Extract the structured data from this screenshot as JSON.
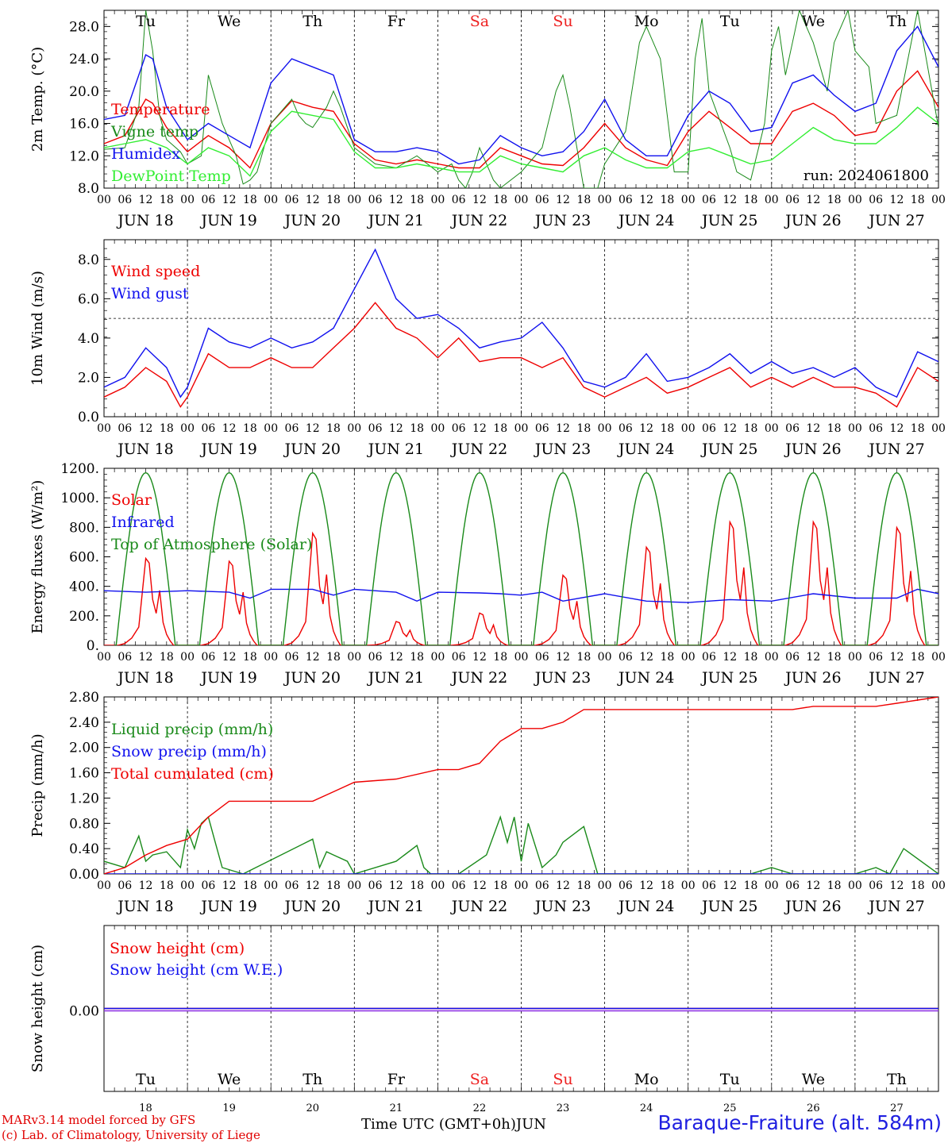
{
  "colors": {
    "red": "#ee0000",
    "darkgreen": "#1a8a1a",
    "blue": "#1010ee",
    "lightgreen": "#33ee33",
    "purple": "#8a2be2",
    "black": "#000000",
    "sat_sun": "#ee2222"
  },
  "days": {
    "weekday_top": [
      "Tu",
      "We",
      "Th",
      "Fr",
      "Sa",
      "Su",
      "Mo",
      "Tu",
      "We",
      "Th"
    ],
    "weekend_index": [
      4,
      5
    ],
    "date_labels": [
      "JUN 18",
      "JUN 19",
      "JUN 20",
      "JUN 21",
      "JUN 22",
      "JUN 23",
      "JUN 24",
      "JUN 25",
      "JUN 26",
      "JUN 27"
    ],
    "day_numbers": [
      "18",
      "19",
      "20",
      "21",
      "22",
      "23",
      "24",
      "25",
      "26",
      "27"
    ],
    "hour_ticks": [
      "00",
      "06",
      "12",
      "18"
    ],
    "final_tick": "00"
  },
  "footer": {
    "credit_line1": "MARv3.14 model forced by GFS",
    "credit_line2": "(c) Lab. of Climatology, University of Liege",
    "time_label": "Time UTC (GMT+0h)",
    "month_label": "JUN",
    "station": "Baraque-Fraiture (alt. 584m)"
  },
  "chart_data": [
    {
      "type": "line",
      "ylabel": "2m Temp. (°C)",
      "ylim": [
        8,
        30
      ],
      "yticks": [
        "8.0",
        "12.0",
        "16.0",
        "20.0",
        "24.0",
        "28.0"
      ],
      "annotation": "run: 2024061800",
      "x_unit": "hours since 2024-06-18 00 UTC",
      "series": [
        {
          "name": "Temperature",
          "color": "red",
          "x": [
            0,
            6,
            12,
            14,
            18,
            24,
            30,
            36,
            42,
            48,
            54,
            60,
            66,
            72,
            78,
            84,
            90,
            96,
            102,
            108,
            114,
            120,
            126,
            132,
            138,
            144,
            150,
            156,
            162,
            168,
            174,
            180,
            186,
            192,
            198,
            204,
            210,
            216,
            222,
            228,
            234,
            240
          ],
          "values": [
            13.5,
            14.5,
            19,
            18.5,
            15.5,
            12.5,
            14.5,
            13,
            10.5,
            16,
            18.8,
            18,
            17.5,
            13.5,
            11.5,
            11,
            11.5,
            11,
            10.5,
            10.5,
            13,
            12,
            11,
            10.8,
            13,
            16,
            13,
            11.5,
            10.8,
            15,
            17.5,
            15.5,
            13.5,
            13.5,
            17.5,
            18.5,
            17,
            14.5,
            15,
            20,
            22.5,
            18
          ]
        },
        {
          "name": "Vigne temp",
          "color": "darkgreen",
          "x": [
            0,
            6,
            10,
            12,
            14,
            16,
            18,
            22,
            24,
            28,
            30,
            34,
            36,
            38,
            40,
            42,
            44,
            48,
            54,
            56,
            58,
            60,
            64,
            66,
            68,
            72,
            78,
            84,
            90,
            96,
            100,
            102,
            104,
            106,
            108,
            112,
            114,
            120,
            126,
            130,
            132,
            134,
            136,
            138,
            142,
            144,
            150,
            154,
            156,
            160,
            162,
            164,
            168,
            170,
            172,
            174,
            180,
            182,
            186,
            190,
            192,
            194,
            196,
            198,
            200,
            204,
            208,
            210,
            214,
            216,
            220,
            222,
            228,
            234,
            240
          ],
          "values": [
            12.8,
            13,
            18,
            30,
            25,
            17,
            14,
            12.5,
            11,
            12,
            22,
            16,
            14,
            12,
            8.5,
            9,
            10,
            16,
            19,
            17,
            16,
            15.5,
            18,
            20,
            18,
            13,
            11,
            10.5,
            12,
            10,
            11,
            9,
            8,
            10,
            13,
            9,
            8,
            10,
            13,
            20,
            22,
            18,
            13,
            8,
            8,
            11,
            15,
            26,
            28,
            24,
            17,
            10,
            10,
            24,
            29,
            20,
            13,
            10,
            9,
            16,
            25,
            28,
            22,
            26,
            30,
            26,
            20,
            26,
            30,
            25,
            23,
            16,
            17,
            30,
            15.5
          ]
        },
        {
          "name": "Humidex",
          "color": "blue",
          "x": [
            0,
            6,
            12,
            14,
            18,
            24,
            30,
            36,
            42,
            48,
            54,
            60,
            66,
            72,
            78,
            84,
            90,
            96,
            102,
            108,
            114,
            120,
            126,
            132,
            138,
            144,
            150,
            156,
            162,
            168,
            174,
            180,
            186,
            192,
            198,
            204,
            210,
            216,
            222,
            228,
            234,
            240
          ],
          "values": [
            16.5,
            17,
            24.5,
            24,
            18,
            14,
            16,
            14.5,
            13,
            21,
            24,
            23,
            22,
            14,
            12.5,
            12.5,
            13,
            12.5,
            11,
            11.5,
            14.5,
            13,
            12,
            12.5,
            15,
            19,
            14,
            12,
            12,
            17,
            20,
            18.5,
            15,
            15.5,
            21,
            22,
            19.5,
            17.5,
            18.5,
            25,
            28,
            23
          ]
        },
        {
          "name": "DewPoint Temp",
          "color": "lightgreen",
          "x": [
            0,
            6,
            12,
            18,
            24,
            30,
            36,
            42,
            48,
            54,
            60,
            66,
            72,
            78,
            84,
            90,
            96,
            102,
            108,
            114,
            120,
            126,
            132,
            138,
            144,
            150,
            156,
            162,
            168,
            174,
            180,
            186,
            192,
            198,
            204,
            210,
            216,
            222,
            228,
            234,
            240
          ],
          "values": [
            13,
            13.5,
            14,
            13,
            11,
            13,
            12,
            9.5,
            15,
            17.5,
            17,
            16.5,
            12.5,
            10.5,
            10.5,
            11,
            10.5,
            10,
            10,
            12,
            11,
            10.5,
            10,
            12,
            13,
            11.5,
            10.5,
            10.5,
            12.5,
            13,
            12,
            11,
            11.5,
            13.5,
            15.5,
            14,
            13.5,
            13.5,
            15.5,
            18,
            16
          ]
        }
      ]
    },
    {
      "type": "line",
      "ylabel": "10m Wind (m/s)",
      "ylim": [
        0,
        9
      ],
      "yticks": [
        "0.0",
        "2.0",
        "4.0",
        "6.0",
        "8.0"
      ],
      "reference_line": 5,
      "x_unit": "hours since 2024-06-18 00 UTC",
      "series": [
        {
          "name": "Wind speed",
          "color": "red",
          "x": [
            0,
            6,
            12,
            18,
            22,
            24,
            30,
            36,
            42,
            48,
            54,
            60,
            66,
            72,
            78,
            84,
            90,
            96,
            102,
            108,
            114,
            120,
            126,
            132,
            138,
            144,
            150,
            156,
            162,
            168,
            174,
            180,
            186,
            192,
            198,
            204,
            210,
            216,
            222,
            228,
            234,
            240
          ],
          "values": [
            1.0,
            1.5,
            2.5,
            1.8,
            0.5,
            1.0,
            3.2,
            2.5,
            2.5,
            3.0,
            2.5,
            2.5,
            3.5,
            4.5,
            5.8,
            4.5,
            4.0,
            3.0,
            4.0,
            2.8,
            3.0,
            3.0,
            2.5,
            3.0,
            1.5,
            1.0,
            1.5,
            2.0,
            1.2,
            1.5,
            2.0,
            2.5,
            1.5,
            2.0,
            1.5,
            2.0,
            1.5,
            1.5,
            1.2,
            0.5,
            2.5,
            1.8
          ]
        },
        {
          "name": "Wind gust",
          "color": "blue",
          "x": [
            0,
            6,
            12,
            18,
            22,
            24,
            30,
            36,
            42,
            48,
            54,
            60,
            66,
            72,
            78,
            84,
            90,
            96,
            102,
            108,
            114,
            120,
            126,
            132,
            138,
            144,
            150,
            156,
            162,
            168,
            174,
            180,
            186,
            192,
            198,
            204,
            210,
            216,
            222,
            228,
            234,
            240
          ],
          "values": [
            1.5,
            2.0,
            3.5,
            2.5,
            1.0,
            1.5,
            4.5,
            3.8,
            3.5,
            4.0,
            3.5,
            3.8,
            4.5,
            6.5,
            8.5,
            6.0,
            5.0,
            5.2,
            4.5,
            3.5,
            3.8,
            4.0,
            4.8,
            3.5,
            1.8,
            1.5,
            2.0,
            3.2,
            1.8,
            2.0,
            2.5,
            3.2,
            2.2,
            2.8,
            2.2,
            2.5,
            2.0,
            2.5,
            1.5,
            1.0,
            3.3,
            2.8
          ]
        }
      ]
    },
    {
      "type": "line",
      "ylabel": "Energy fluxes (W/m²)",
      "ylim": [
        0,
        1200
      ],
      "yticks": [
        "0.",
        "200.",
        "400.",
        "600.",
        "800.",
        "1000.",
        "1200."
      ],
      "x_unit": "hours since 2024-06-18 00 UTC",
      "series": [
        {
          "name": "Solar",
          "color": "red",
          "peaks": [
            620,
            600,
            800,
            170,
            230,
            500,
            700,
            880,
            880,
            840
          ]
        },
        {
          "name": "Infrared",
          "color": "blue",
          "x": [
            0,
            12,
            24,
            36,
            42,
            48,
            60,
            66,
            72,
            84,
            90,
            96,
            108,
            114,
            120,
            126,
            132,
            144,
            156,
            168,
            180,
            192,
            204,
            216,
            228,
            234,
            240
          ],
          "values": [
            370,
            360,
            370,
            360,
            320,
            380,
            380,
            340,
            380,
            360,
            300,
            360,
            355,
            350,
            340,
            360,
            300,
            350,
            300,
            290,
            310,
            300,
            350,
            320,
            320,
            380,
            350
          ]
        },
        {
          "name": "Top of Atmosphere (Solar)",
          "color": "darkgreen",
          "peak": 1170
        }
      ]
    },
    {
      "type": "line",
      "ylabel": "Precip (mm/h)",
      "ylim": [
        0,
        2.8
      ],
      "yticks": [
        "0.00",
        "0.40",
        "0.80",
        "1.20",
        "1.60",
        "2.00",
        "2.40",
        "2.80"
      ],
      "x_unit": "hours since 2024-06-18 00 UTC",
      "series": [
        {
          "name": "Liquid precip (mm/h)",
          "color": "darkgreen",
          "x": [
            0,
            6,
            10,
            12,
            14,
            18,
            22,
            24,
            26,
            28,
            30,
            32,
            34,
            40,
            60,
            62,
            64,
            66,
            70,
            72,
            84,
            90,
            92,
            94,
            96,
            102,
            110,
            114,
            116,
            118,
            120,
            122,
            126,
            130,
            132,
            138,
            142,
            144,
            150,
            186,
            192,
            198,
            216,
            222,
            226,
            230,
            240
          ],
          "values": [
            0.2,
            0.1,
            0.6,
            0.2,
            0.3,
            0.35,
            0.1,
            0.7,
            0.4,
            0.8,
            0.9,
            0.5,
            0.1,
            0.0,
            0.55,
            0.1,
            0.35,
            0.3,
            0.2,
            0.0,
            0.2,
            0.45,
            0.1,
            0.0,
            0.0,
            0.0,
            0.3,
            0.9,
            0.5,
            0.9,
            0.2,
            0.8,
            0.1,
            0.3,
            0.5,
            0.75,
            0.0,
            0.0,
            0.0,
            0.0,
            0.1,
            0.0,
            0.0,
            0.1,
            0.0,
            0.4,
            0.0
          ]
        },
        {
          "name": "Snow precip (mm/h)",
          "color": "blue",
          "x": [
            0,
            240
          ],
          "values": [
            0,
            0
          ]
        },
        {
          "name": "Total cumulated (cm)",
          "color": "red",
          "x": [
            0,
            6,
            12,
            18,
            24,
            30,
            36,
            48,
            60,
            66,
            72,
            84,
            96,
            102,
            108,
            114,
            120,
            126,
            132,
            138,
            144,
            156,
            168,
            180,
            192,
            198,
            204,
            216,
            222,
            228,
            234,
            240
          ],
          "values": [
            0.0,
            0.1,
            0.3,
            0.45,
            0.55,
            0.9,
            1.15,
            1.15,
            1.15,
            1.3,
            1.45,
            1.5,
            1.65,
            1.65,
            1.75,
            2.1,
            2.3,
            2.3,
            2.4,
            2.6,
            2.6,
            2.6,
            2.6,
            2.6,
            2.6,
            2.6,
            2.65,
            2.65,
            2.65,
            2.7,
            2.75,
            2.8
          ]
        }
      ]
    },
    {
      "type": "line",
      "ylabel": "Snow height (cm)",
      "yticks": [
        "0.00"
      ],
      "x_unit": "hours since 2024-06-18 00 UTC",
      "series": [
        {
          "name": "Snow height (cm)",
          "color": "red",
          "x": [
            0,
            240
          ],
          "values": [
            0,
            0
          ]
        },
        {
          "name": "Snow height (cm W.E.)",
          "color": "blue",
          "x": [
            0,
            240
          ],
          "values": [
            0,
            0
          ]
        }
      ]
    }
  ]
}
